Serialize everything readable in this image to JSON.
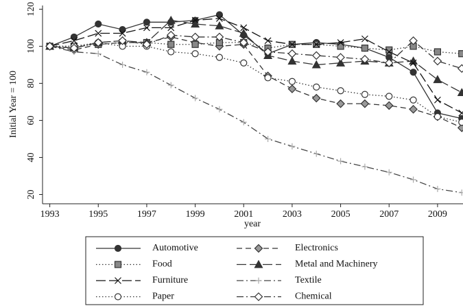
{
  "chart_data": {
    "type": "line",
    "ylabel": "Initial Year = 100",
    "xlabel": "year",
    "x": [
      1993,
      1994,
      1995,
      1996,
      1997,
      1998,
      1999,
      2000,
      2001,
      2002,
      2003,
      2004,
      2005,
      2006,
      2007,
      2008,
      2009,
      2010
    ],
    "xlim": [
      1992.7,
      2010.05
    ],
    "xticks": [
      1993,
      1995,
      1997,
      1999,
      2001,
      2003,
      2005,
      2007,
      2009
    ],
    "ylim": [
      15,
      122
    ],
    "yticks": [
      20,
      40,
      60,
      80,
      100,
      120
    ],
    "grid": false,
    "legend": "bottom",
    "series": [
      {
        "name": "Automotive",
        "color": "#333333",
        "marker": "circle",
        "linestyle": "solid",
        "values": [
          100,
          105,
          112,
          109,
          113,
          113,
          114,
          117,
          106,
          96,
          101,
          102,
          101,
          99,
          94,
          86,
          64,
          61
        ]
      },
      {
        "name": "Electronics",
        "color": "#333333",
        "markercolor": "#999999",
        "marker": "diamond",
        "linestyle": "dash",
        "values": [
          100,
          98,
          101,
          102,
          102,
          105,
          102,
          100,
          101,
          84,
          77,
          72,
          69,
          69,
          68,
          66,
          62,
          56
        ]
      },
      {
        "name": "Food",
        "color": "#333333",
        "markercolor": "#888888",
        "marker": "square",
        "linestyle": "dotted",
        "values": [
          100,
          100,
          101,
          102,
          102,
          101,
          101,
          102,
          102,
          99,
          101,
          101,
          100,
          99,
          98,
          100,
          97,
          96
        ]
      },
      {
        "name": "Metal and Machinery",
        "color": "#333333",
        "marker": "triangle",
        "linestyle": "longdash",
        "values": [
          100,
          99,
          102,
          103,
          102,
          114,
          112,
          111,
          107,
          95,
          92,
          90,
          91,
          92,
          91,
          92,
          82,
          75
        ]
      },
      {
        "name": "Furniture",
        "color": "#111111",
        "marker": "x",
        "linestyle": "longdash",
        "values": [
          100,
          103,
          107,
          107,
          110,
          110,
          114,
          115,
          110,
          103,
          101,
          101,
          102,
          104,
          97,
          91,
          71,
          64
        ]
      },
      {
        "name": "Textile",
        "color": "#444444",
        "markercolor": "#aaaaaa",
        "marker": "plus",
        "linestyle": "dashdot",
        "values": [
          100,
          97,
          96,
          90,
          86,
          79,
          72,
          66,
          59,
          50,
          46,
          42,
          38,
          35,
          32,
          28,
          23,
          21
        ]
      },
      {
        "name": "Paper",
        "color": "#333333",
        "marker": "circle-open",
        "linestyle": "dotted",
        "values": [
          100,
          100,
          102,
          100,
          100,
          97,
          96,
          94,
          91,
          83,
          81,
          78,
          76,
          74,
          73,
          71,
          62,
          59
        ]
      },
      {
        "name": "Chemical",
        "color": "#333333",
        "markercolor": "#666666",
        "marker": "diamond-open",
        "linestyle": "dashdot",
        "values": [
          100,
          99,
          102,
          103,
          101,
          106,
          105,
          105,
          102,
          97,
          96,
          95,
          94,
          93,
          91,
          103,
          92,
          88
        ]
      }
    ]
  }
}
